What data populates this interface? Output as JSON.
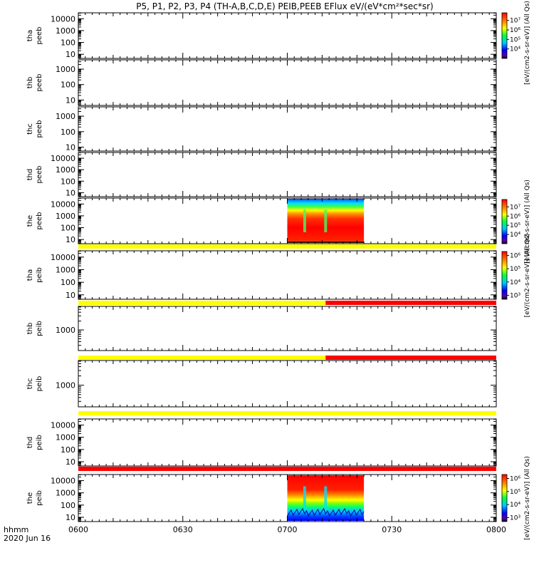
{
  "title": "P5, P1, P2, P3, P4 (TH-A,B,C,D,E) PEIB,PEEB EFlux eV/(eV*cm²*sec*sr)",
  "chart_data": {
    "type": "heatmap",
    "x_ticks": [
      "0600",
      "0630",
      "0700",
      "0730",
      "0800"
    ],
    "x_tick_minutes": [
      0,
      30,
      60,
      90,
      120
    ],
    "x_label_top": "hhmm",
    "x_label_bottom": "2020 Jun 16",
    "colorbar_label": "[eV/(cm2-s-sr-eV)] (All Qs)",
    "panels": [
      {
        "label": [
          "tha",
          "peeb"
        ],
        "y_ticks": [
          "10000",
          "1000",
          "100",
          "10"
        ],
        "y_exp": [
          4,
          3,
          2,
          1
        ],
        "y_range": [
          0.65,
          4.5
        ],
        "data": null,
        "colorbar": {
          "ticks": [
            "10⁷",
            "10⁶",
            "10⁵",
            "10⁴"
          ],
          "exp": [
            7,
            6,
            5,
            4
          ],
          "range": [
            3,
            7.8
          ]
        }
      },
      {
        "label": [
          "thb",
          "peeb"
        ],
        "y_ticks": [
          "1000",
          "100",
          "10"
        ],
        "y_exp": [
          3,
          2,
          1
        ],
        "y_range": [
          0.65,
          3.6
        ],
        "data": null
      },
      {
        "label": [
          "thc",
          "peeb"
        ],
        "y_ticks": [
          "1000",
          "100",
          "10"
        ],
        "y_exp": [
          3,
          2,
          1
        ],
        "y_range": [
          0.75,
          3.6
        ],
        "data": null
      },
      {
        "label": [
          "thd",
          "peeb"
        ],
        "y_ticks": [
          "10000",
          "1000",
          "100",
          "10"
        ],
        "y_exp": [
          4,
          3,
          2,
          1
        ],
        "y_range": [
          0.65,
          4.5
        ],
        "data": null
      },
      {
        "label": [
          "the",
          "peeb"
        ],
        "y_ticks": [
          "10000",
          "1000",
          "100",
          "10"
        ],
        "y_exp": [
          4,
          3,
          2,
          1
        ],
        "y_range": [
          0.65,
          4.5
        ],
        "data": {
          "t_range": [
            60,
            82
          ],
          "spike_minutes": [
            65,
            71
          ]
        },
        "colorbar": {
          "ticks": [
            "10⁷",
            "10⁶",
            "10⁵",
            "10⁴"
          ],
          "exp": [
            7,
            6,
            5,
            4
          ],
          "range": [
            3,
            7.8
          ]
        }
      },
      {
        "label": [
          "tha",
          "peib"
        ],
        "y_ticks": [
          "10000",
          "1000",
          "100",
          "10"
        ],
        "y_exp": [
          4,
          3,
          2,
          1
        ],
        "y_range": [
          0.65,
          4.5
        ],
        "data": null,
        "colorbar": {
          "ticks": [
            "10⁶",
            "10⁵",
            "10⁴",
            "10³"
          ],
          "exp": [
            6,
            5,
            4,
            3
          ],
          "range": [
            2.7,
            6.3
          ]
        }
      },
      {
        "label": [
          "thb",
          "peib"
        ],
        "y_ticks": [
          "1000"
        ],
        "y_exp": [
          3
        ],
        "y_range": [
          2.3,
          3.8
        ],
        "data": null
      },
      {
        "label": [
          "thc",
          "peib"
        ],
        "y_ticks": [
          "1000"
        ],
        "y_exp": [
          3
        ],
        "y_range": [
          2.3,
          3.8
        ],
        "data": null
      },
      {
        "label": [
          "thd",
          "peib"
        ],
        "y_ticks": [
          "10000",
          "1000",
          "100",
          "10"
        ],
        "y_exp": [
          4,
          3,
          2,
          1
        ],
        "y_range": [
          0.65,
          4.5
        ],
        "data": null
      },
      {
        "label": [
          "the",
          "peib"
        ],
        "y_ticks": [
          "10000",
          "1000",
          "100",
          "10"
        ],
        "y_exp": [
          4,
          3,
          2,
          1
        ],
        "y_range": [
          0.65,
          4.5
        ],
        "data": {
          "t_range": [
            60,
            82
          ],
          "spike_minutes": [
            65,
            71
          ]
        },
        "colorbar": {
          "ticks": [
            "10⁶",
            "10⁵",
            "10⁴",
            "10³"
          ],
          "exp": [
            6,
            5,
            4,
            3
          ],
          "range": [
            2.7,
            6.3
          ]
        }
      }
    ],
    "status_bars": [
      {
        "after_panel": 4,
        "segments": [
          {
            "t": [
              0,
              120
            ],
            "color": "#ffff00"
          }
        ]
      },
      {
        "after_panel": 5,
        "segments": [
          {
            "t": [
              0,
              71
            ],
            "color": "#ffff00"
          },
          {
            "t": [
              71,
              120
            ],
            "color": "#ff0000"
          }
        ]
      },
      {
        "after_panel": 6,
        "segments": [
          {
            "t": [
              0,
              71
            ],
            "color": "#ffff00"
          },
          {
            "t": [
              71,
              120
            ],
            "color": "#ff0000"
          }
        ]
      },
      {
        "after_panel": 7,
        "segments": [
          {
            "t": [
              0,
              120
            ],
            "color": "#ffff00"
          }
        ]
      },
      {
        "after_panel": 8,
        "segments": [
          {
            "t": [
              0,
              120
            ],
            "color": "#ff0000"
          }
        ]
      }
    ]
  }
}
